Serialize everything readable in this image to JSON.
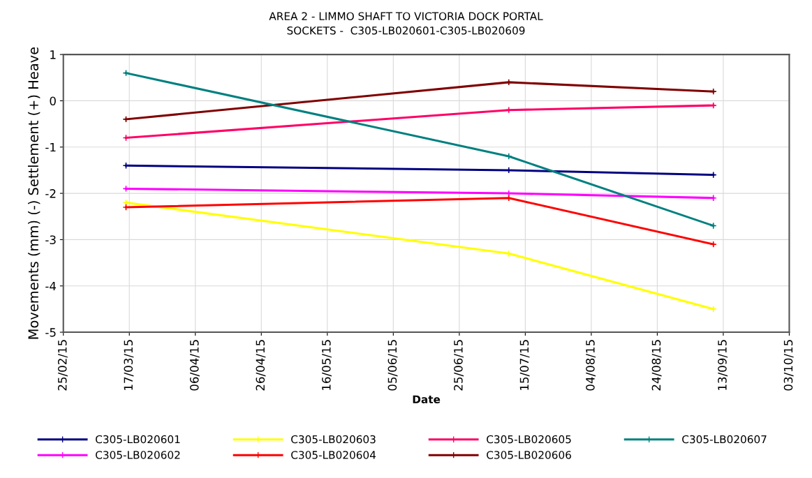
{
  "chart_data": {
    "type": "line",
    "title": "AREA 2 - LIMMO SHAFT TO VICTORIA DOCK PORTAL",
    "subtitle": "SOCKETS -  C305-LB020601-C305-LB020609",
    "xlabel": "Date",
    "ylabel": "Movements (mm) (-) Settlement (+) Heave",
    "x": [
      "2015-03-16",
      "2015-07-10",
      "2015-09-10"
    ],
    "series": [
      {
        "name": "C305-LB020601",
        "color": "#000080",
        "values": [
          -1.4,
          -1.5,
          -1.6
        ]
      },
      {
        "name": "C305-LB020602",
        "color": "#ff00ff",
        "values": [
          -1.9,
          -2.0,
          -2.1
        ]
      },
      {
        "name": "C305-LB020603",
        "color": "#ffff00",
        "values": [
          -2.2,
          -3.3,
          -4.5
        ]
      },
      {
        "name": "C305-LB020604",
        "color": "#ff0000",
        "values": [
          -2.3,
          -2.1,
          -3.1
        ]
      },
      {
        "name": "C305-LB020605",
        "color": "#ff0066",
        "values": [
          -0.8,
          -0.2,
          -0.1
        ]
      },
      {
        "name": "C305-LB020606",
        "color": "#800000",
        "values": [
          -0.4,
          0.4,
          0.2
        ]
      },
      {
        "name": "C305-LB020607",
        "color": "#008080",
        "values": [
          0.6,
          -1.2,
          -2.7
        ]
      }
    ],
    "xlim": [
      "2015-02-25",
      "2015-10-03"
    ],
    "xticks": [
      {
        "value": "2015-02-25",
        "label": "25/02/15"
      },
      {
        "value": "2015-03-17",
        "label": "17/03/15"
      },
      {
        "value": "2015-04-06",
        "label": "06/04/15"
      },
      {
        "value": "2015-04-26",
        "label": "26/04/15"
      },
      {
        "value": "2015-05-16",
        "label": "16/05/15"
      },
      {
        "value": "2015-06-05",
        "label": "05/06/15"
      },
      {
        "value": "2015-06-25",
        "label": "25/06/15"
      },
      {
        "value": "2015-07-15",
        "label": "15/07/15"
      },
      {
        "value": "2015-08-04",
        "label": "04/08/15"
      },
      {
        "value": "2015-08-24",
        "label": "24/08/15"
      },
      {
        "value": "2015-09-13",
        "label": "13/09/15"
      },
      {
        "value": "2015-10-03",
        "label": "03/10/15"
      }
    ],
    "ylim": [
      -5,
      1
    ],
    "yticks": [
      -5,
      -4,
      -3,
      -2,
      -1,
      0,
      1
    ],
    "grid": true,
    "legend": "bottom",
    "marker": "cross",
    "line_style": "solid"
  }
}
